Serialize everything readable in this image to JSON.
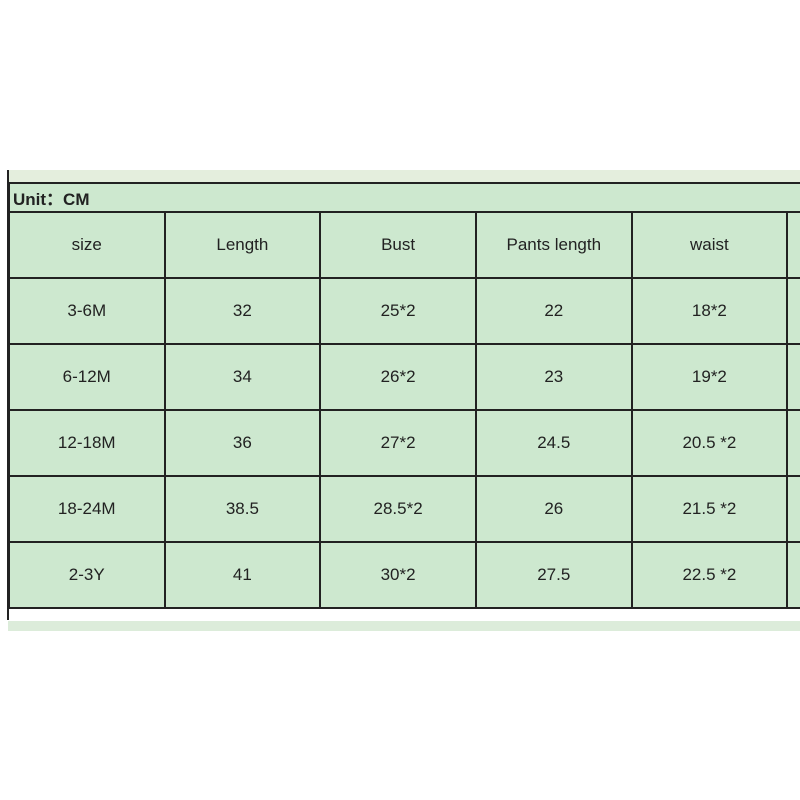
{
  "unit_label": "Unit：CM",
  "headers": [
    "size",
    "Length",
    "Bust",
    "Pants length",
    "waist"
  ],
  "rows": [
    [
      "3-6M",
      "32",
      "25*2",
      "22",
      "18*2"
    ],
    [
      "6-12M",
      "34",
      "26*2",
      "23",
      "19*2"
    ],
    [
      "12-18M",
      "36",
      "27*2",
      "24.5",
      "20.5 *2"
    ],
    [
      "18-24M",
      "38.5",
      "28.5*2",
      "26",
      "21.5 *2"
    ],
    [
      "2-3Y",
      "41",
      "30*2",
      "27.5",
      "22.5 *2"
    ]
  ],
  "colors": {
    "cell_background": "#cde8cf",
    "border": "#222222"
  }
}
